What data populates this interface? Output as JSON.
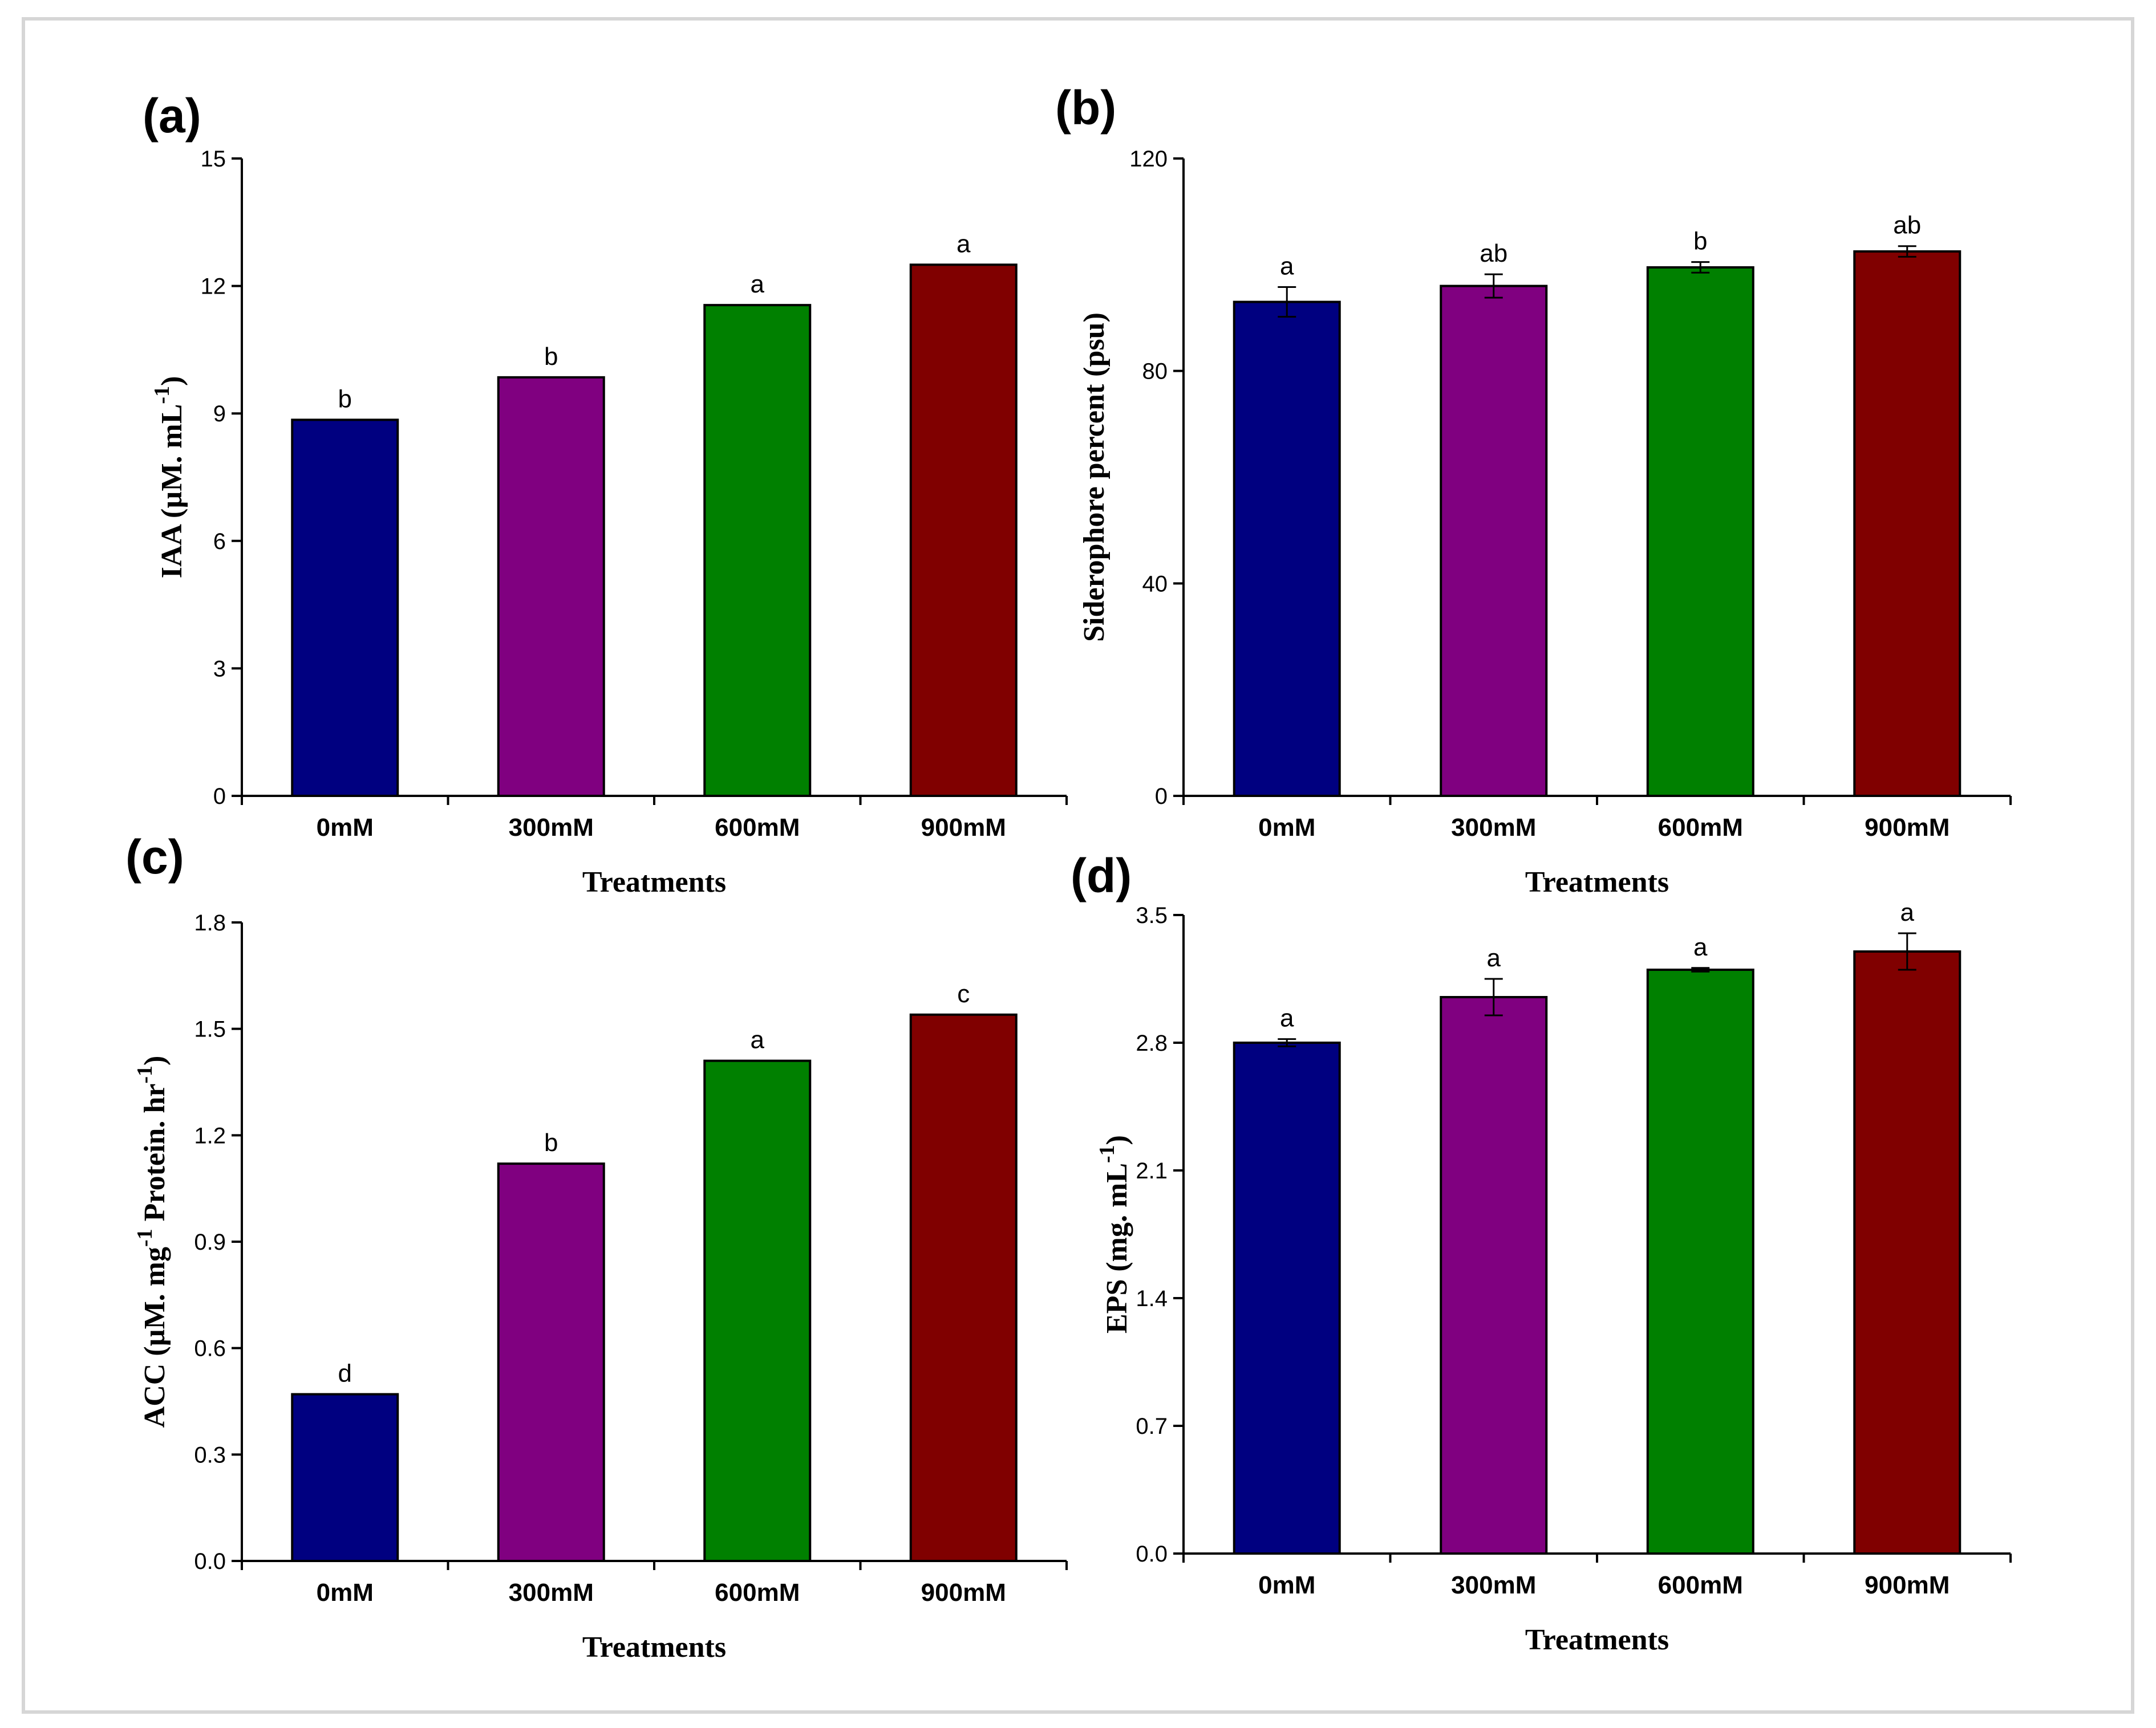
{
  "chart_data": [
    {
      "type": "bar",
      "panel": "(a)",
      "categories": [
        "0mM",
        "300mM",
        "600mM",
        "900mM"
      ],
      "values": [
        8.85,
        9.85,
        11.55,
        12.5
      ],
      "errors": [
        0,
        0,
        0,
        0
      ],
      "significance": [
        "b",
        "b",
        "a",
        "a"
      ],
      "xlabel": "Treatments",
      "ylabel": "IAA (µM. mL",
      "ylabel_sup": "-1",
      "ylabel_end": ")",
      "ylim": [
        0,
        15
      ],
      "yticks": [
        0,
        3,
        6,
        9,
        12,
        15
      ],
      "ytick_labels": [
        "0",
        "3",
        "6",
        "9",
        "12",
        "15"
      ]
    },
    {
      "type": "bar",
      "panel": "(b)",
      "categories": [
        "0mM",
        "300mM",
        "600mM",
        "900mM"
      ],
      "values": [
        93,
        96,
        99.5,
        102.5
      ],
      "errors": [
        2.8,
        2.2,
        1.0,
        1.0
      ],
      "significance": [
        "a",
        "ab",
        "b",
        "ab"
      ],
      "xlabel": "Treatments",
      "ylabel": "Siderophore percent (psu)",
      "ylabel_sup": "",
      "ylabel_end": "",
      "ylim": [
        0,
        120
      ],
      "yticks": [
        0,
        40,
        80,
        120
      ],
      "ytick_labels": [
        "0",
        "40",
        "80",
        "120"
      ]
    },
    {
      "type": "bar",
      "panel": "(c)",
      "categories": [
        "0mM",
        "300mM",
        "600mM",
        "900mM"
      ],
      "values": [
        0.47,
        1.12,
        1.41,
        1.54
      ],
      "errors": [
        0,
        0,
        0,
        0
      ],
      "significance": [
        "d",
        "b",
        "a",
        "c"
      ],
      "xlabel": "Treatments",
      "ylabel": "ACC (µM. mg",
      "ylabel_sup": "-1",
      "ylabel_mid": " Protein. hr",
      "ylabel_sup2": "-1",
      "ylabel_end": ")",
      "ylim": [
        0,
        1.8
      ],
      "yticks": [
        0,
        0.3,
        0.6,
        0.9,
        1.2,
        1.5,
        1.8
      ],
      "ytick_labels": [
        "0.0",
        "0.3",
        "0.6",
        "0.9",
        "1.2",
        "1.5",
        "1.8"
      ]
    },
    {
      "type": "bar",
      "panel": "(d)",
      "categories": [
        "0mM",
        "300mM",
        "600mM",
        "900mM"
      ],
      "values": [
        2.8,
        3.05,
        3.2,
        3.3
      ],
      "errors": [
        0.02,
        0.1,
        0.01,
        0.1
      ],
      "significance": [
        "a",
        "a",
        "a",
        "a"
      ],
      "xlabel": "Treatments",
      "ylabel": "EPS (mg. mL",
      "ylabel_sup": "-1",
      "ylabel_end": ")",
      "ylim": [
        0,
        3.5
      ],
      "yticks": [
        0,
        0.7,
        1.4,
        2.1,
        2.8,
        3.5
      ],
      "ytick_labels": [
        "0.0",
        "0.7",
        "1.4",
        "2.1",
        "2.8",
        "3.5"
      ]
    }
  ],
  "colors": {
    "bar_colors": [
      "#000080",
      "#800080",
      "#008000",
      "#800000"
    ]
  }
}
